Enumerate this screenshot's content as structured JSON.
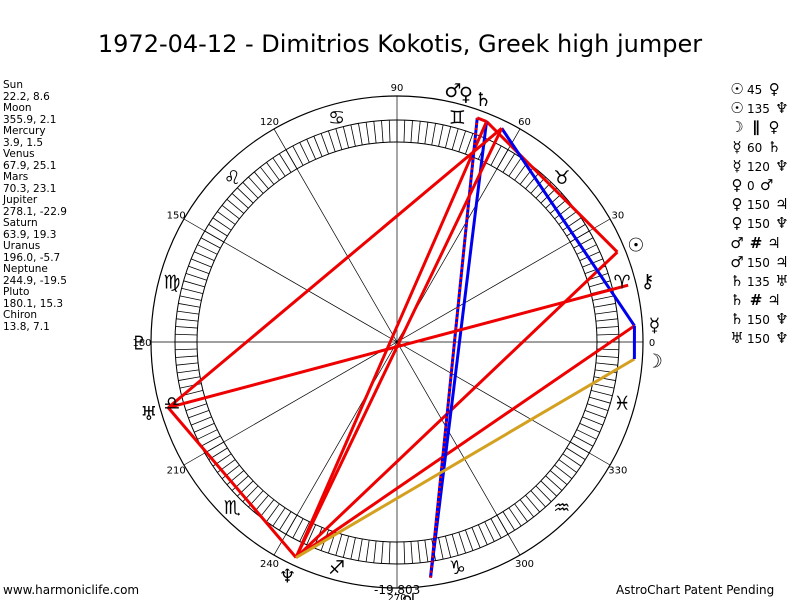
{
  "title": "1972-04-12 - Dimitrios Kokotis, Greek high jumper",
  "positions": [
    {
      "name": "Sun",
      "values": "22.2, 8.6"
    },
    {
      "name": "Moon",
      "values": "355.9, 2.1"
    },
    {
      "name": "Mercury",
      "values": "3.9, 1.5"
    },
    {
      "name": "Venus",
      "values": "67.9, 25.1"
    },
    {
      "name": "Mars",
      "values": "70.3, 23.1"
    },
    {
      "name": "Jupiter",
      "values": "278.1, -22.9"
    },
    {
      "name": "Saturn",
      "values": "63.9, 19.3"
    },
    {
      "name": "Uranus",
      "values": "196.0, -5.7"
    },
    {
      "name": "Neptune",
      "values": "244.9, -19.5"
    },
    {
      "name": "Pluto",
      "values": "180.1, 15.3"
    },
    {
      "name": "Chiron",
      "values": "13.8, 7.1"
    }
  ],
  "aspects": [
    {
      "p1": "☉",
      "angle": "45",
      "p2": "♀"
    },
    {
      "p1": "☉",
      "angle": "135",
      "p2": "♆"
    },
    {
      "p1": "☽",
      "angle": "",
      "sym": "∥",
      "p2": "♀"
    },
    {
      "p1": "☿",
      "angle": "60",
      "p2": "♄"
    },
    {
      "p1": "☿",
      "angle": "120",
      "p2": "♆"
    },
    {
      "p1": "♀",
      "angle": "0",
      "p2": "♂"
    },
    {
      "p1": "♀",
      "angle": "150",
      "p2": "♃"
    },
    {
      "p1": "♀",
      "angle": "150",
      "p2": "♆"
    },
    {
      "p1": "♂",
      "angle": "",
      "sym": "#",
      "p2": "♃"
    },
    {
      "p1": "♂",
      "angle": "150",
      "p2": "♃"
    },
    {
      "p1": "♄",
      "angle": "135",
      "p2": "♅"
    },
    {
      "p1": "♄",
      "angle": "",
      "sym": "#",
      "p2": "♃"
    },
    {
      "p1": "♄",
      "angle": "150",
      "p2": "♆"
    },
    {
      "p1": "♅",
      "angle": "150",
      "p2": "♆"
    }
  ],
  "chart_data": {
    "type": "astrological-wheel",
    "degree_labels": [
      "0",
      "30",
      "60",
      "90",
      "120",
      "150",
      "180",
      "210",
      "240",
      "270",
      "300",
      "330"
    ],
    "zodiac_signs": [
      {
        "sign": "Aries",
        "glyph": "♈",
        "center_deg": 15
      },
      {
        "sign": "Taurus",
        "glyph": "♉",
        "center_deg": 45
      },
      {
        "sign": "Gemini",
        "glyph": "♊",
        "center_deg": 75
      },
      {
        "sign": "Cancer",
        "glyph": "♋",
        "center_deg": 105
      },
      {
        "sign": "Leo",
        "glyph": "♌",
        "center_deg": 135
      },
      {
        "sign": "Virgo",
        "glyph": "♍",
        "center_deg": 165
      },
      {
        "sign": "Libra",
        "glyph": "♎",
        "center_deg": 195
      },
      {
        "sign": "Scorpio",
        "glyph": "♏",
        "center_deg": 225
      },
      {
        "sign": "Sagittarius",
        "glyph": "♐",
        "center_deg": 255
      },
      {
        "sign": "Capricorn",
        "glyph": "♑",
        "center_deg": 285
      },
      {
        "sign": "Aquarius",
        "glyph": "♒",
        "center_deg": 315
      },
      {
        "sign": "Pisces",
        "glyph": "♓",
        "center_deg": 345
      }
    ],
    "planets": [
      {
        "name": "Sun",
        "glyph": "☉",
        "lon": 22.2,
        "label_lon": 22.2
      },
      {
        "name": "Moon",
        "glyph": "☽",
        "lon": 355.9,
        "label_lon": 355.9
      },
      {
        "name": "Mercury",
        "glyph": "☿",
        "lon": 3.9,
        "label_lon": 3.9
      },
      {
        "name": "Venus",
        "glyph": "♀",
        "lon": 67.9,
        "label_lon": 74.5
      },
      {
        "name": "Mars",
        "glyph": "♂",
        "lon": 70.3,
        "label_lon": 77.5
      },
      {
        "name": "Jupiter",
        "glyph": "♃",
        "lon": 278.1,
        "label_lon": 272.5
      },
      {
        "name": "Saturn",
        "glyph": "♄",
        "lon": 63.9,
        "label_lon": 70.5
      },
      {
        "name": "Uranus",
        "glyph": "♅",
        "lon": 196.0,
        "label_lon": 196.0
      },
      {
        "name": "Neptune",
        "glyph": "♆",
        "lon": 244.9,
        "label_lon": 244.9
      },
      {
        "name": "Pluto",
        "glyph": "♇",
        "lon": 180.1,
        "label_lon": 180.1
      },
      {
        "name": "Chiron",
        "glyph": "⚷",
        "lon": 13.8,
        "label_lon": 13.8
      }
    ],
    "aspect_lines": [
      {
        "from": "Sun",
        "to": "Venus",
        "color": "#ee0000",
        "style": "solid"
      },
      {
        "from": "Sun",
        "to": "Neptune",
        "color": "#ee0000",
        "style": "solid"
      },
      {
        "from": "Mercury",
        "to": "Saturn",
        "color": "#0000ee",
        "style": "solid"
      },
      {
        "from": "Mercury",
        "to": "Neptune",
        "color": "#ee0000",
        "style": "solid"
      },
      {
        "from": "Venus",
        "to": "Mars",
        "color": "#ee0000",
        "style": "solid"
      },
      {
        "from": "Venus",
        "to": "Jupiter",
        "color": "#0000ee",
        "style": "solid"
      },
      {
        "from": "Venus",
        "to": "Neptune",
        "color": "#ee0000",
        "style": "solid"
      },
      {
        "from": "Mars",
        "to": "Jupiter",
        "color": "#0000ee",
        "style": "solid"
      },
      {
        "from": "Mars",
        "to": "Jupiter",
        "color": "#ee0000",
        "style": "dotted"
      },
      {
        "from": "Saturn",
        "to": "Uranus",
        "color": "#ee0000",
        "style": "solid"
      },
      {
        "from": "Saturn",
        "to": "Neptune",
        "color": "#ee0000",
        "style": "solid"
      },
      {
        "from": "Saturn",
        "to": "Neptune",
        "color": "#ee0000",
        "style": "dotted"
      },
      {
        "from": "Uranus",
        "to": "Neptune",
        "color": "#ee0000",
        "style": "solid"
      },
      {
        "from": "Uranus",
        "to": "Chiron",
        "color": "#ee0000",
        "style": "solid"
      },
      {
        "from": "Moon",
        "to": "Neptune",
        "color": "#d4a020",
        "style": "solid"
      },
      {
        "from": "Moon",
        "to": "Mercury",
        "color": "#0000ee",
        "style": "solid"
      }
    ]
  },
  "footer": {
    "left": "www.harmoniclife.com",
    "middle": "-19,803",
    "right": "AstroChart Patent Pending"
  }
}
